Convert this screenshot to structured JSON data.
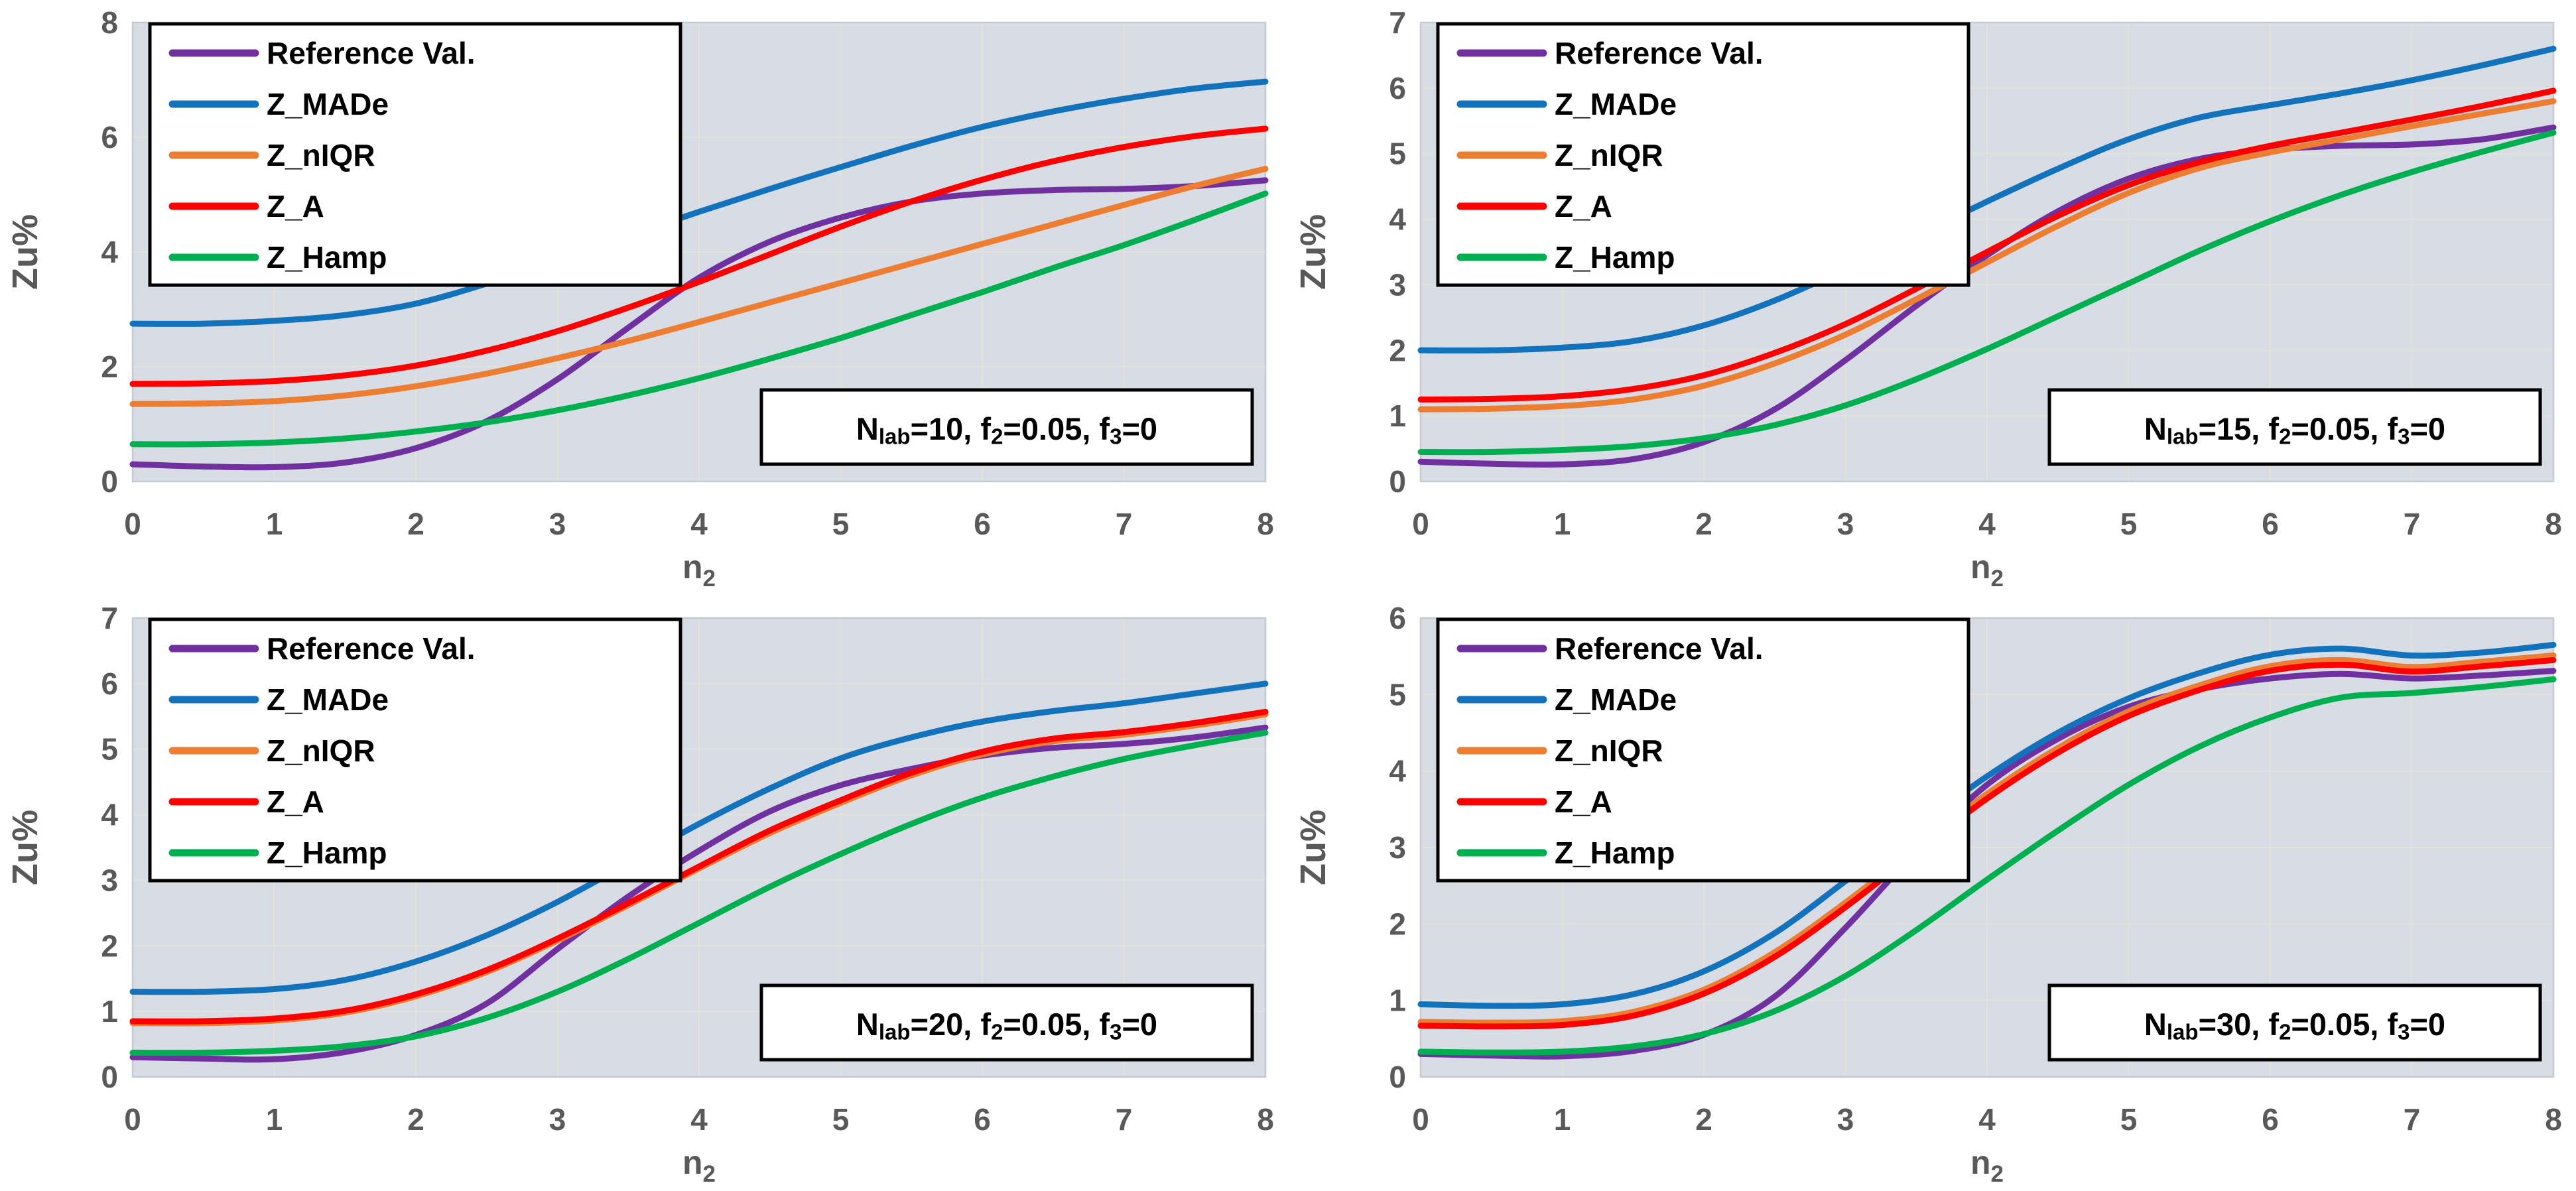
{
  "styles": {
    "page_bg": "#ffffff",
    "plot_bg": "#d8dce4",
    "grid_color": "#e3e1da",
    "plot_border_color": "#c5c9d1",
    "tick_label_color": "#595959",
    "legend_border_color": "#000000",
    "legend_bg": "#ffffff",
    "annotation_border_color": "#000000",
    "annotation_bg": "#ffffff",
    "annotation_text_color": "#000000",
    "series_colors": {
      "reference": "#7030A0",
      "z_made": "#1272BC",
      "z_niqr": "#ED7D31",
      "z_a": "#FF0000",
      "z_hamp": "#00B050"
    }
  },
  "axis": {
    "y_title": "Zu%",
    "x_title_parts": [
      {
        "t": "n"
      },
      {
        "t": "2",
        "sub": true
      }
    ],
    "x_ticks": [
      0,
      1,
      2,
      3,
      4,
      5,
      6,
      7,
      8
    ],
    "xlim": [
      0,
      8
    ]
  },
  "legend": {
    "items": [
      {
        "label": "Reference Val.",
        "color_key": "reference"
      },
      {
        "label": "Z_MADe",
        "color_key": "z_made"
      },
      {
        "label": "Z_nIQR",
        "color_key": "z_niqr"
      },
      {
        "label": "Z_A",
        "color_key": "z_a"
      },
      {
        "label": "Z_Hamp",
        "color_key": "z_hamp"
      }
    ]
  },
  "chart_data": [
    {
      "type": "line",
      "position": "top-left",
      "annotation_text": "Nlab=10, f2=0.05, f3=0",
      "annotation_parts": [
        {
          "t": "N"
        },
        {
          "t": "lab",
          "sub": true
        },
        {
          "t": "=10, f"
        },
        {
          "t": "2",
          "sub": true
        },
        {
          "t": "=0.05, f"
        },
        {
          "t": "3",
          "sub": true
        },
        {
          "t": "=0"
        }
      ],
      "xlabel_parts": [
        {
          "t": "n"
        },
        {
          "t": "2",
          "sub": true
        }
      ],
      "ylabel": "Zu%",
      "xlim": [
        0,
        8
      ],
      "ylim": [
        0,
        8
      ],
      "yticks": [
        0,
        2,
        4,
        6,
        8
      ],
      "x": [
        0,
        0.5,
        1,
        1.5,
        2,
        2.5,
        3,
        3.5,
        4,
        4.5,
        5,
        5.5,
        6,
        6.5,
        7,
        7.5,
        8
      ],
      "series": [
        {
          "name": "Reference Val.",
          "color_key": "reference",
          "values": [
            0.3,
            0.26,
            0.25,
            0.33,
            0.58,
            1.05,
            1.78,
            2.68,
            3.55,
            4.18,
            4.6,
            4.88,
            5.02,
            5.08,
            5.1,
            5.15,
            5.25
          ]
        },
        {
          "name": "Z_MADe",
          "color_key": "z_made",
          "values": [
            2.75,
            2.75,
            2.8,
            2.9,
            3.1,
            3.45,
            3.87,
            4.28,
            4.7,
            5.1,
            5.48,
            5.85,
            6.18,
            6.45,
            6.67,
            6.85,
            6.97
          ]
        },
        {
          "name": "Z_nIQR",
          "color_key": "z_niqr",
          "values": [
            1.35,
            1.36,
            1.4,
            1.5,
            1.66,
            1.88,
            2.15,
            2.45,
            2.78,
            3.12,
            3.46,
            3.8,
            4.14,
            4.48,
            4.82,
            5.15,
            5.45
          ]
        },
        {
          "name": "Z_A",
          "color_key": "z_a",
          "values": [
            1.7,
            1.71,
            1.75,
            1.85,
            2.02,
            2.28,
            2.62,
            3.03,
            3.48,
            3.96,
            4.44,
            4.88,
            5.26,
            5.58,
            5.83,
            6.02,
            6.15
          ]
        },
        {
          "name": "Z_Hamp",
          "color_key": "z_hamp",
          "values": [
            0.65,
            0.65,
            0.68,
            0.75,
            0.87,
            1.03,
            1.24,
            1.5,
            1.8,
            2.14,
            2.5,
            2.9,
            3.3,
            3.72,
            4.12,
            4.56,
            5.02
          ]
        }
      ]
    },
    {
      "type": "line",
      "position": "top-right",
      "annotation_text": "Nlab=15, f2=0.05, f3=0",
      "annotation_parts": [
        {
          "t": "N"
        },
        {
          "t": "lab",
          "sub": true
        },
        {
          "t": "=15, f"
        },
        {
          "t": "2",
          "sub": true
        },
        {
          "t": "=0.05, f"
        },
        {
          "t": "3",
          "sub": true
        },
        {
          "t": "=0"
        }
      ],
      "xlabel_parts": [
        {
          "t": "n"
        },
        {
          "t": "2",
          "sub": true
        }
      ],
      "ylabel": "Zu%",
      "xlim": [
        0,
        8
      ],
      "ylim": [
        0,
        7
      ],
      "yticks": [
        0,
        1,
        2,
        3,
        4,
        5,
        6,
        7
      ],
      "x": [
        0,
        0.5,
        1,
        1.5,
        2,
        2.5,
        3,
        3.5,
        4,
        4.5,
        5,
        5.5,
        6,
        6.5,
        7,
        7.5,
        8
      ],
      "series": [
        {
          "name": "Reference Val.",
          "color_key": "reference",
          "values": [
            0.3,
            0.27,
            0.26,
            0.34,
            0.6,
            1.1,
            1.85,
            2.68,
            3.45,
            4.12,
            4.62,
            4.92,
            5.06,
            5.12,
            5.14,
            5.22,
            5.4
          ]
        },
        {
          "name": "Z_MADe",
          "color_key": "z_made",
          "values": [
            2.0,
            2.0,
            2.04,
            2.14,
            2.38,
            2.76,
            3.24,
            3.75,
            4.27,
            4.77,
            5.22,
            5.55,
            5.74,
            5.92,
            6.12,
            6.35,
            6.6
          ]
        },
        {
          "name": "Z_nIQR",
          "color_key": "z_niqr",
          "values": [
            1.1,
            1.11,
            1.15,
            1.25,
            1.46,
            1.8,
            2.24,
            2.78,
            3.34,
            3.9,
            4.4,
            4.78,
            5.02,
            5.22,
            5.42,
            5.61,
            5.8
          ]
        },
        {
          "name": "Z_A",
          "color_key": "z_a",
          "values": [
            1.25,
            1.26,
            1.3,
            1.41,
            1.62,
            1.96,
            2.4,
            2.94,
            3.5,
            4.05,
            4.52,
            4.87,
            5.12,
            5.32,
            5.52,
            5.73,
            5.96
          ]
        },
        {
          "name": "Z_Hamp",
          "color_key": "z_hamp",
          "values": [
            0.45,
            0.45,
            0.48,
            0.54,
            0.66,
            0.86,
            1.16,
            1.56,
            2.02,
            2.52,
            3.02,
            3.52,
            3.97,
            4.37,
            4.72,
            5.03,
            5.32
          ]
        }
      ]
    },
    {
      "type": "line",
      "position": "bottom-left",
      "annotation_text": "Nlab=20, f2=0.05, f3=0",
      "annotation_parts": [
        {
          "t": "N"
        },
        {
          "t": "lab",
          "sub": true
        },
        {
          "t": "=20, f"
        },
        {
          "t": "2",
          "sub": true
        },
        {
          "t": "=0.05, f"
        },
        {
          "t": "3",
          "sub": true
        },
        {
          "t": "=0"
        }
      ],
      "xlabel_parts": [
        {
          "t": "n"
        },
        {
          "t": "2",
          "sub": true
        }
      ],
      "ylabel": "Zu%",
      "xlim": [
        0,
        8
      ],
      "ylim": [
        0,
        7
      ],
      "yticks": [
        0,
        1,
        2,
        3,
        4,
        5,
        6,
        7
      ],
      "x": [
        0,
        0.5,
        1,
        1.5,
        2,
        2.5,
        3,
        3.5,
        4,
        4.5,
        5,
        5.5,
        6,
        6.5,
        7,
        7.5,
        8
      ],
      "series": [
        {
          "name": "Reference Val.",
          "color_key": "reference",
          "values": [
            0.3,
            0.28,
            0.27,
            0.38,
            0.64,
            1.12,
            1.95,
            2.75,
            3.45,
            4.05,
            4.45,
            4.7,
            4.9,
            5.02,
            5.08,
            5.18,
            5.33
          ]
        },
        {
          "name": "Z_MADe",
          "color_key": "z_made",
          "values": [
            1.3,
            1.3,
            1.34,
            1.48,
            1.76,
            2.16,
            2.67,
            3.26,
            3.86,
            4.4,
            4.86,
            5.18,
            5.42,
            5.58,
            5.7,
            5.85,
            6.0
          ]
        },
        {
          "name": "Z_nIQR",
          "color_key": "z_niqr",
          "values": [
            0.82,
            0.82,
            0.86,
            0.98,
            1.23,
            1.6,
            2.08,
            2.62,
            3.18,
            3.72,
            4.18,
            4.6,
            4.92,
            5.12,
            5.22,
            5.36,
            5.53
          ]
        },
        {
          "name": "Z_A",
          "color_key": "z_a",
          "values": [
            0.85,
            0.85,
            0.89,
            1.01,
            1.26,
            1.63,
            2.11,
            2.65,
            3.21,
            3.76,
            4.22,
            4.64,
            4.96,
            5.16,
            5.26,
            5.4,
            5.57
          ]
        },
        {
          "name": "Z_Hamp",
          "color_key": "z_hamp",
          "values": [
            0.37,
            0.37,
            0.4,
            0.47,
            0.62,
            0.9,
            1.3,
            1.8,
            2.35,
            2.9,
            3.4,
            3.86,
            4.26,
            4.58,
            4.85,
            5.06,
            5.25
          ]
        }
      ]
    },
    {
      "type": "line",
      "position": "bottom-right",
      "annotation_text": "Nlab=30, f2=0.05, f3=0",
      "annotation_parts": [
        {
          "t": "N"
        },
        {
          "t": "lab",
          "sub": true
        },
        {
          "t": "=30, f"
        },
        {
          "t": "2",
          "sub": true
        },
        {
          "t": "=0.05, f"
        },
        {
          "t": "3",
          "sub": true
        },
        {
          "t": "=0"
        }
      ],
      "xlabel_parts": [
        {
          "t": "n"
        },
        {
          "t": "2",
          "sub": true
        }
      ],
      "ylabel": "Zu%",
      "xlim": [
        0,
        8
      ],
      "ylim": [
        0,
        6
      ],
      "yticks": [
        0,
        1,
        2,
        3,
        4,
        5,
        6
      ],
      "x": [
        0,
        0.5,
        1,
        1.5,
        2,
        2.5,
        3,
        3.5,
        4,
        4.5,
        5,
        5.5,
        6,
        6.5,
        7,
        7.5,
        8
      ],
      "series": [
        {
          "name": "Reference Val.",
          "color_key": "reference",
          "values": [
            0.3,
            0.28,
            0.27,
            0.34,
            0.55,
            1.05,
            1.95,
            2.95,
            3.82,
            4.42,
            4.84,
            5.07,
            5.21,
            5.27,
            5.21,
            5.25,
            5.31
          ]
        },
        {
          "name": "Z_MADe",
          "color_key": "z_made",
          "values": [
            0.95,
            0.93,
            0.95,
            1.08,
            1.38,
            1.88,
            2.56,
            3.26,
            3.93,
            4.5,
            4.95,
            5.28,
            5.52,
            5.6,
            5.51,
            5.55,
            5.65
          ]
        },
        {
          "name": "Z_nIQR",
          "color_key": "z_niqr",
          "values": [
            0.72,
            0.71,
            0.73,
            0.85,
            1.14,
            1.63,
            2.28,
            3.0,
            3.7,
            4.3,
            4.78,
            5.12,
            5.37,
            5.45,
            5.36,
            5.43,
            5.51
          ]
        },
        {
          "name": "Z_A",
          "color_key": "z_a",
          "values": [
            0.67,
            0.66,
            0.68,
            0.8,
            1.09,
            1.57,
            2.22,
            2.94,
            3.64,
            4.24,
            4.72,
            5.06,
            5.31,
            5.39,
            5.3,
            5.37,
            5.45
          ]
        },
        {
          "name": "Z_Hamp",
          "color_key": "z_hamp",
          "values": [
            0.33,
            0.32,
            0.33,
            0.4,
            0.56,
            0.86,
            1.32,
            1.92,
            2.58,
            3.22,
            3.82,
            4.32,
            4.7,
            4.96,
            5.02,
            5.1,
            5.2
          ]
        }
      ]
    }
  ]
}
